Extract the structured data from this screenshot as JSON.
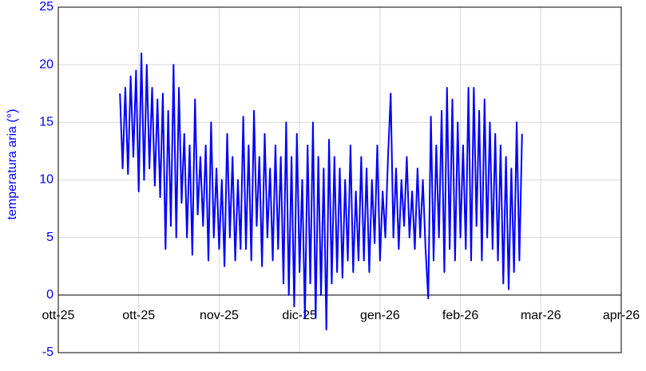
{
  "chart_data": {
    "type": "line",
    "y_label": "temperatura aria (°)",
    "x": [
      45954,
      45955,
      45956,
      45957,
      45958,
      45959,
      45960,
      45961,
      45962,
      45963,
      45964,
      45965,
      45966,
      45967,
      45968,
      45969,
      45970,
      45971,
      45972,
      45973,
      45974,
      45975,
      45976,
      45977,
      45978,
      45979,
      45980,
      45981,
      45982,
      45983,
      45984,
      45985,
      45986,
      45987,
      45988,
      45989,
      45990,
      45991,
      45992,
      45993,
      45994,
      45995,
      45996,
      45997,
      45998,
      45999,
      46000,
      46001,
      46002,
      46003,
      46004,
      46005,
      46006,
      46007,
      46008,
      46009,
      46010,
      46011,
      46012,
      46013,
      46014,
      46015,
      46016,
      46017,
      46018,
      46019,
      46020,
      46021,
      46022,
      46023,
      46024,
      46025,
      46026,
      46027,
      46028,
      46029,
      46030,
      46031,
      46032,
      46033,
      46034,
      46035,
      46036,
      46037,
      46038,
      46039,
      46040,
      46041,
      46042,
      46043,
      46044,
      46045,
      46046,
      46047,
      46048,
      46049,
      46050,
      46051,
      46052,
      46053,
      46054,
      46055,
      46056,
      46057,
      46058,
      46059,
      46060,
      46061,
      46062,
      46063,
      46064,
      46065,
      46066,
      46067,
      46068,
      46069,
      46070,
      46071,
      46072,
      46073,
      46074,
      46075,
      46076,
      46077,
      46078,
      46079,
      46080,
      46081,
      46082,
      46083,
      46084,
      46085,
      46086,
      46087,
      46088,
      46089,
      46090,
      46091,
      46092,
      46093,
      46094,
      46095,
      46096,
      46097,
      46098,
      46099,
      46100,
      46101,
      46102,
      46103,
      46104
    ],
    "series": [
      {
        "color": "#0000ff",
        "values": [
          17.5,
          11,
          18,
          10.5,
          19,
          12,
          19.5,
          9,
          21,
          10,
          20,
          11,
          18,
          9.5,
          17,
          8.5,
          17.5,
          4,
          16,
          6,
          20,
          5,
          18,
          8,
          14,
          5,
          13,
          3.5,
          17,
          7,
          12,
          6,
          13,
          3,
          15,
          5,
          11,
          4,
          10,
          2.5,
          14,
          5,
          12,
          3,
          10,
          4,
          15.5,
          4,
          13,
          3,
          16,
          6,
          12,
          2.5,
          14,
          5,
          11,
          3,
          13,
          4,
          12,
          1,
          15,
          0,
          12,
          -1,
          14,
          2,
          10,
          -2,
          13,
          1,
          15,
          -2,
          12,
          0,
          11,
          -3,
          13.5,
          1,
          12,
          2,
          11,
          1.5,
          10,
          3,
          13,
          2,
          9,
          3,
          12,
          3,
          11,
          2,
          10,
          4.5,
          13,
          3,
          9,
          5,
          12,
          17.5,
          5,
          11,
          4,
          10,
          6,
          12,
          5,
          9,
          4,
          11,
          5,
          10,
          4,
          -0.3,
          15.5,
          3,
          13,
          5,
          16,
          2,
          18,
          4,
          17,
          3,
          15,
          5,
          13,
          4,
          18,
          3,
          18,
          6,
          16,
          3,
          17,
          5,
          15,
          4,
          14,
          3,
          13,
          1,
          12,
          0.5,
          11,
          2,
          15,
          3,
          14
        ]
      }
    ],
    "xlim": [
      45931,
      46141
    ],
    "xticks": [
      {
        "value": 45931,
        "label": "ott-25"
      },
      {
        "value": 45961,
        "label": "ott-25"
      },
      {
        "value": 45991,
        "label": "nov-25"
      },
      {
        "value": 46021,
        "label": "dic-25"
      },
      {
        "value": 46051,
        "label": "gen-26"
      },
      {
        "value": 46081,
        "label": "feb-26"
      },
      {
        "value": 46111,
        "label": "mar-26"
      },
      {
        "value": 46141,
        "label": "apr-26"
      }
    ],
    "ylim": [
      -5,
      25
    ],
    "yticks": [
      -5,
      0,
      5,
      10,
      15,
      20,
      25
    ],
    "grid": true
  }
}
